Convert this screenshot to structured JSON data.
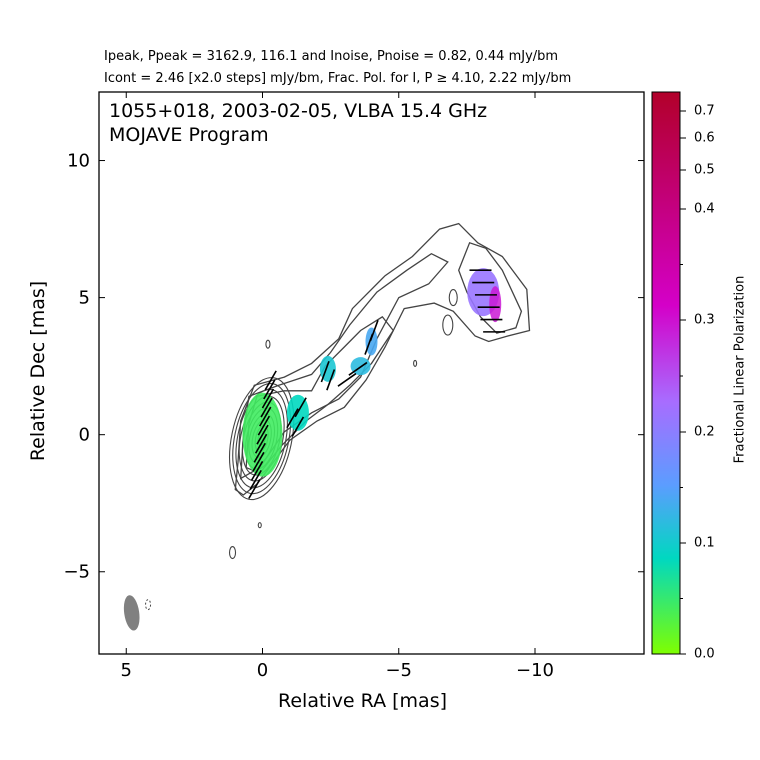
{
  "header": {
    "line1": "Ipeak, Ppeak = 3162.9, 116.1 and Inoise, Pnoise = 0.82, 0.44 mJy/bm",
    "line2": "Icont = 2.46 [x2.0 steps] mJy/bm, Frac. Pol. for I, P ≥ 4.10, 2.22 mJy/bm"
  },
  "chart_data": {
    "type": "contour",
    "title": "1055+018, 2003-02-05, VLBA 15.4 GHz",
    "subtitle": "MOJAVE Program",
    "xlabel": "Relative RA [mas]",
    "ylabel": "Relative Dec [mas]",
    "xlim": [
      6,
      -14
    ],
    "ylim": [
      -8,
      12.5
    ],
    "xticks": [
      5,
      0,
      -5,
      -10
    ],
    "xtick_labels": [
      "5",
      "0",
      "−5",
      "−10"
    ],
    "yticks": [
      10,
      5,
      0,
      -5
    ],
    "ytick_labels": [
      "10",
      "5",
      "0",
      "−5"
    ],
    "peak_intensity_mJy_per_beam": 3162.9,
    "peak_polarized_mJy_per_beam": 116.1,
    "noise_I_mJy_per_beam": 0.82,
    "noise_P_mJy_per_beam": 0.44,
    "lowest_contour_mJy_per_beam": 2.46,
    "contour_step_factor": 2.0,
    "frac_pol_cutoff_I": 4.1,
    "frac_pol_cutoff_P": 2.22,
    "beam": {
      "x": 4.8,
      "y": -6.5,
      "major_mas": 1.3,
      "minor_mas": 0.55,
      "pa_deg": -8
    },
    "core": {
      "x": 0,
      "y": 0
    },
    "jet_components": [
      {
        "x": 0,
        "y": 0,
        "frac_pol": 0.06
      },
      {
        "x": -1.3,
        "y": 0.8,
        "frac_pol": 0.12
      },
      {
        "x": -2.4,
        "y": 2.4,
        "frac_pol": 0.15
      },
      {
        "x": -3.6,
        "y": 2.5,
        "frac_pol": 0.17
      },
      {
        "x": -4.0,
        "y": 3.4,
        "frac_pol": 0.2
      },
      {
        "x": -8.1,
        "y": 5.2,
        "frac_pol": 0.3
      }
    ],
    "colorbar": {
      "label": "Fractional Linear Polarization",
      "range": [
        0.0,
        0.75
      ],
      "ticks": [
        0.0,
        0.1,
        0.2,
        0.3,
        0.4,
        0.5,
        0.6,
        0.7
      ],
      "tick_labels": [
        "0.0",
        "0.1",
        "0.2",
        "0.3",
        "0.4",
        "0.5",
        "0.6",
        "0.7"
      ],
      "colors": [
        "#7fff00",
        "#00d8c0",
        "#5b9dff",
        "#a86cff",
        "#d400c8",
        "#b2002a"
      ]
    }
  }
}
